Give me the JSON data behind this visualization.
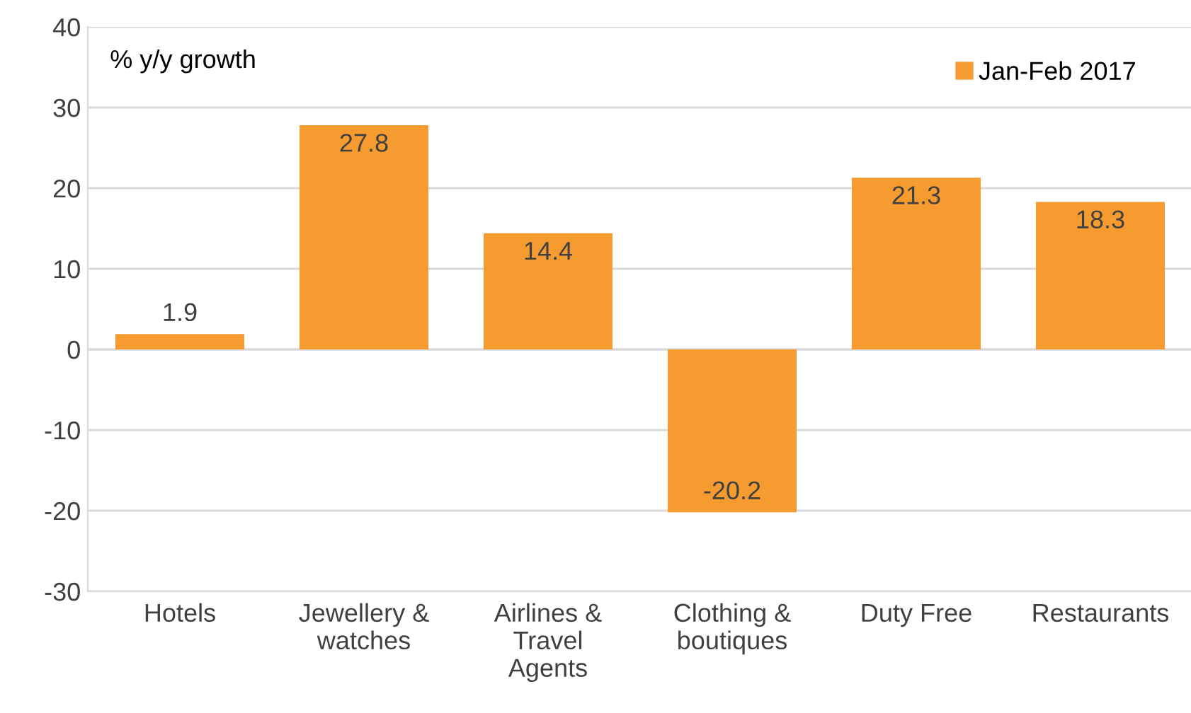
{
  "chart_data": {
    "type": "bar",
    "categories": [
      "Hotels",
      "Jewellery &\nwatches",
      "Airlines &\nTravel\nAgents",
      "Clothing &\nboutiques",
      "Duty Free",
      "Restaurants"
    ],
    "series": [
      {
        "name": "Jan-Feb 2017",
        "color": "#f59b30",
        "values": [
          1.9,
          27.8,
          14.4,
          -20.2,
          21.3,
          18.3
        ]
      }
    ],
    "ylim": [
      -30,
      40
    ],
    "yticks": [
      -30,
      -20,
      -10,
      0,
      10,
      20,
      30,
      40
    ],
    "grid": "y",
    "legend": "top right",
    "data_labels": true,
    "annotations": [
      "% y/y growth"
    ]
  }
}
